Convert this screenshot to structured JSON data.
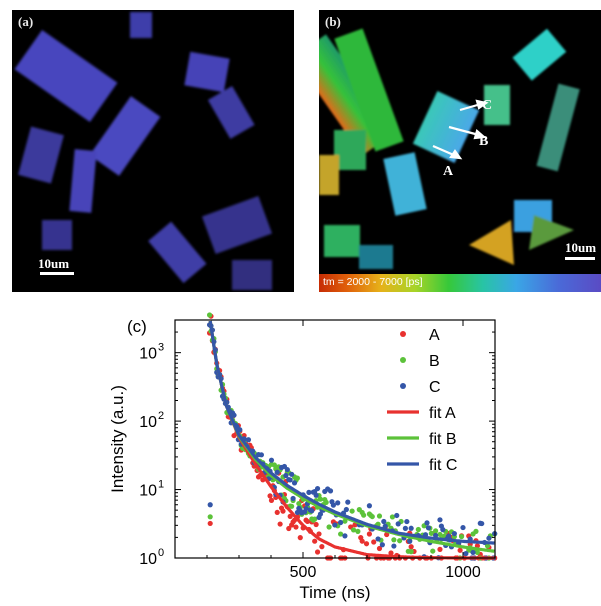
{
  "panels": {
    "a": {
      "label": "(a)",
      "scale_label": "10um"
    },
    "b": {
      "label": "(b)",
      "scale_label": "10um",
      "colorbar_label": "tm = 2000 - 7000 [ps]",
      "annotations": [
        "A",
        "B",
        "C"
      ]
    }
  },
  "chart_data": {
    "type": "scatter",
    "panel_label": "(c)",
    "xlabel": "Time (ns)",
    "ylabel": "Intensity (a.u.)",
    "xlim": [
      100,
      1100
    ],
    "ylim": [
      1,
      3000
    ],
    "yscale": "log",
    "xticks": [
      500,
      1000
    ],
    "yticks": [
      1,
      10,
      100,
      1000
    ],
    "ytick_labels": [
      "10",
      "10",
      "10",
      "10"
    ],
    "ytick_exponents": [
      "0",
      "1",
      "2",
      "3"
    ],
    "legend_position": "top-right",
    "series": [
      {
        "name": "A",
        "color": "#e8312f",
        "kind": "points",
        "tail": 2.2,
        "noise": 0.35
      },
      {
        "name": "B",
        "color": "#5cc23a",
        "kind": "points",
        "tail": 4.0,
        "noise": 0.22
      },
      {
        "name": "C",
        "color": "#3456a8",
        "kind": "points",
        "tail": 4.5,
        "noise": 0.25
      },
      {
        "name": "fit A",
        "color": "#e8312f",
        "kind": "fit",
        "x": [
          210,
          230,
          260,
          300,
          350,
          400,
          450,
          500,
          550,
          600,
          700,
          800,
          900,
          1000,
          1100
        ],
        "y": [
          2900,
          700,
          170,
          58,
          24,
          11,
          5.5,
          3.0,
          1.9,
          1.45,
          1.12,
          1.04,
          1.01,
          1.0,
          1.0
        ]
      },
      {
        "name": "fit B",
        "color": "#5cc23a",
        "kind": "fit",
        "x": [
          210,
          230,
          260,
          300,
          350,
          400,
          450,
          500,
          550,
          600,
          700,
          800,
          900,
          1000,
          1100
        ],
        "y": [
          2900,
          700,
          170,
          60,
          28,
          16,
          10.5,
          7.5,
          5.6,
          4.4,
          2.95,
          2.2,
          1.75,
          1.45,
          1.25
        ]
      },
      {
        "name": "fit C",
        "color": "#3456a8",
        "kind": "fit",
        "x": [
          210,
          230,
          260,
          300,
          350,
          400,
          450,
          500,
          550,
          600,
          700,
          800,
          900,
          1000,
          1100
        ],
        "y": [
          2900,
          700,
          170,
          62,
          30,
          17.5,
          11.5,
          8.2,
          6.1,
          4.7,
          3.1,
          2.3,
          1.95,
          1.75,
          1.65
        ]
      }
    ]
  }
}
